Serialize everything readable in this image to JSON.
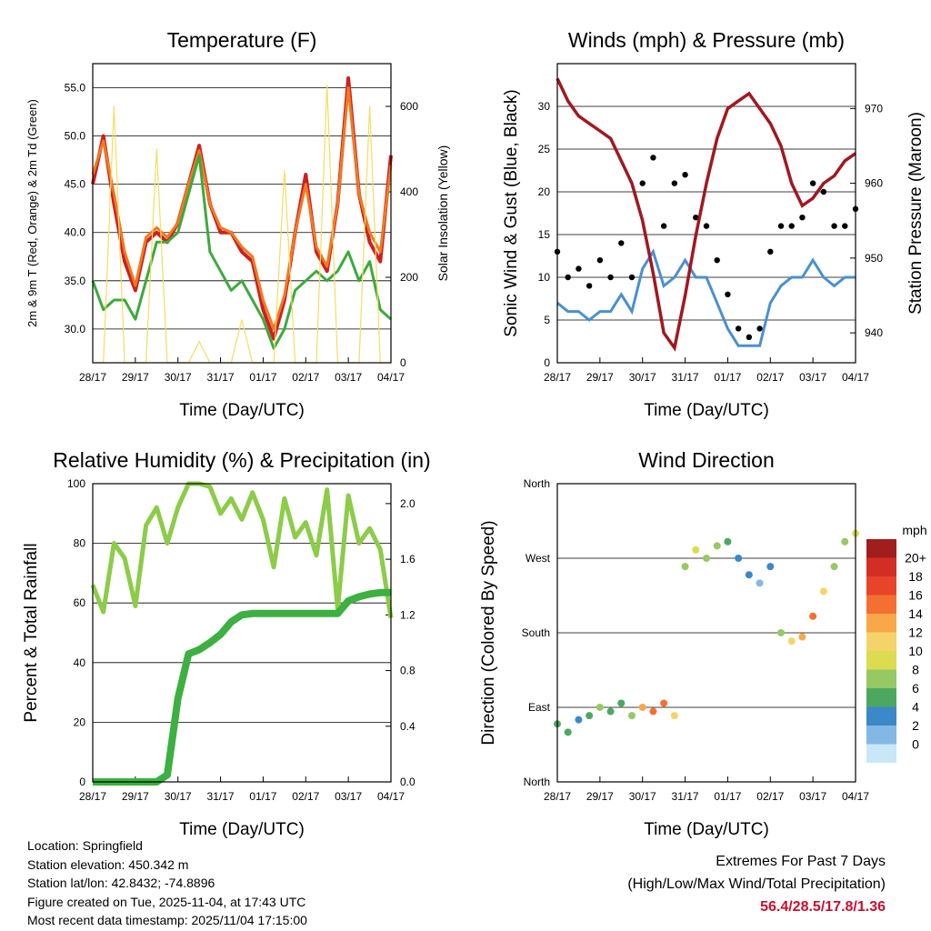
{
  "time_ticks": [
    "28/17",
    "29/17",
    "30/17",
    "31/17",
    "01/17",
    "02/17",
    "03/17",
    "04/17"
  ],
  "extremes": {
    "title": "Extremes For Past 7 Days",
    "subtitle": "(High/Low/Max Wind/Total Precipitation)",
    "values": "56.4/28.5/17.8/1.36"
  },
  "info": {
    "location": "Location: Springfield",
    "elevation": "Station elevation: 450.342 m",
    "latlon": "Station lat/lon: 42.8432; -74.8896",
    "created": "Figure created on Tue, 2025-11-04, at 17:43 UTC",
    "latest": "Most recent data timestamp: 2025/11/04 17:15:00"
  },
  "colors": {
    "red": "#cc2020",
    "orange": "#f07a20",
    "green": "#3caa3c",
    "yellow": "#f5dd60",
    "black": "#000000",
    "blue": "#4a90d0",
    "maroon": "#a01820",
    "rh": "#8ccc48",
    "precip": "#3cb040"
  },
  "chart_data": [
    {
      "id": "temperature",
      "type": "line",
      "title": "Temperature (F)",
      "xlabel": "Time (Day/UTC)",
      "ylabel": "2m & 9m T (Red, Orange) & 2m Td (Green)",
      "y2label": "Solar Insolation (Yellow)",
      "ylim": [
        26.5,
        57.5
      ],
      "yticks": [
        "30.0",
        "35.0",
        "40.0",
        "45.0",
        "50.0",
        "55.0"
      ],
      "y2lim": [
        0,
        700
      ],
      "y2ticks": [
        "0",
        "200",
        "400",
        "600"
      ],
      "x": [
        0,
        0.25,
        0.5,
        0.75,
        1,
        1.25,
        1.5,
        1.75,
        2,
        2.25,
        2.5,
        2.75,
        3,
        3.25,
        3.5,
        3.75,
        4,
        4.25,
        4.5,
        4.75,
        5,
        5.25,
        5.5,
        5.75,
        6,
        6.25,
        6.5,
        6.75,
        7
      ],
      "series": [
        {
          "name": "2m T",
          "values": [
            45,
            50,
            43,
            37,
            34,
            39,
            40,
            39,
            41,
            45,
            49,
            43,
            40,
            40,
            38,
            37,
            32,
            29,
            33,
            40,
            46,
            38,
            36,
            43,
            56,
            44,
            39,
            37,
            48
          ]
        },
        {
          "name": "9m T",
          "values": [
            46,
            49.5,
            44,
            38,
            34.5,
            39.5,
            40.5,
            39.5,
            41,
            45,
            48.5,
            43,
            40.5,
            40,
            38.5,
            37.5,
            33,
            30,
            33.5,
            40,
            45,
            38.5,
            36.5,
            43,
            55,
            44,
            40,
            38,
            47
          ]
        },
        {
          "name": "2m Td",
          "values": [
            35,
            32,
            33,
            33,
            31,
            35,
            39,
            39,
            40,
            44,
            48,
            38,
            36,
            34,
            35,
            33,
            31,
            28,
            30,
            34,
            35,
            36,
            35,
            36,
            38,
            35,
            37,
            32,
            31
          ]
        },
        {
          "name": "Solar insolation",
          "axis": "y2",
          "values": [
            0,
            0,
            600,
            0,
            0,
            0,
            500,
            0,
            0,
            0,
            50,
            0,
            0,
            0,
            100,
            0,
            0,
            0,
            450,
            0,
            0,
            0,
            650,
            0,
            0,
            0,
            600,
            0,
            0
          ]
        }
      ]
    },
    {
      "id": "winds",
      "type": "line",
      "title": "Winds (mph) & Pressure (mb)",
      "xlabel": "Time (Day/UTC)",
      "ylabel": "Sonic Wind & Gust (Blue, Black)",
      "y2label": "Station Pressure (Maroon)",
      "ylim": [
        0,
        35
      ],
      "yticks": [
        "0",
        "5",
        "10",
        "15",
        "20",
        "25",
        "30"
      ],
      "y2lim": [
        936,
        976
      ],
      "y2ticks": [
        "940",
        "950",
        "960",
        "970"
      ],
      "x": [
        0,
        0.25,
        0.5,
        0.75,
        1,
        1.25,
        1.5,
        1.75,
        2,
        2.25,
        2.5,
        2.75,
        3,
        3.25,
        3.5,
        3.75,
        4,
        4.25,
        4.5,
        4.75,
        5,
        5.25,
        5.5,
        5.75,
        6,
        6.25,
        6.5,
        6.75,
        7
      ],
      "series": [
        {
          "name": "Gust",
          "values": [
            13,
            10,
            11,
            9,
            12,
            10,
            14,
            10,
            21,
            24,
            16,
            21,
            22,
            17,
            16,
            12,
            8,
            4,
            3,
            4,
            13,
            16,
            16,
            17,
            21,
            20,
            16,
            16,
            18
          ]
        },
        {
          "name": "Wind",
          "values": [
            7,
            6,
            6,
            5,
            6,
            6,
            8,
            6,
            11,
            13,
            9,
            10,
            12,
            10,
            10,
            7,
            4,
            2,
            2,
            2,
            7,
            9,
            10,
            10,
            12,
            10,
            9,
            10,
            10
          ]
        },
        {
          "name": "Pressure",
          "axis": "y2",
          "values": [
            974,
            971,
            969,
            968,
            967,
            966,
            963,
            960,
            955,
            948,
            940,
            938,
            945,
            953,
            960,
            966,
            970,
            971,
            972,
            970,
            968,
            965,
            960,
            957,
            958,
            960,
            961,
            963,
            964
          ]
        }
      ]
    },
    {
      "id": "rh_precip",
      "type": "line",
      "title": "Relative Humidity (%) & Precipitation (in)",
      "xlabel": "Time (Day/UTC)",
      "ylabel": "Percent & Total Rainfall",
      "ylim": [
        0,
        100
      ],
      "yticks": [
        "0",
        "20",
        "40",
        "60",
        "80",
        "100"
      ],
      "y2lim": [
        0,
        2.143
      ],
      "y2ticks": [
        "0.0",
        "0.4",
        "0.8",
        "1.2",
        "1.6",
        "2.0"
      ],
      "x": [
        0,
        0.25,
        0.5,
        0.75,
        1,
        1.25,
        1.5,
        1.75,
        2,
        2.25,
        2.5,
        2.75,
        3,
        3.25,
        3.5,
        3.75,
        4,
        4.25,
        4.5,
        4.75,
        5,
        5.25,
        5.5,
        5.75,
        6,
        6.25,
        6.5,
        6.75,
        7
      ],
      "series": [
        {
          "name": "Relative humidity",
          "values": [
            66,
            57,
            80,
            75,
            59,
            86,
            92,
            80,
            92,
            100,
            100,
            99,
            90,
            95,
            88,
            97,
            88,
            72,
            95,
            82,
            87,
            76,
            98,
            58,
            96,
            80,
            85,
            78,
            55
          ]
        },
        {
          "name": "Total precipitation",
          "axis": "y2",
          "values": [
            0,
            0,
            0,
            0,
            0,
            0,
            0,
            0.05,
            0.6,
            0.92,
            0.95,
            1.0,
            1.06,
            1.15,
            1.2,
            1.21,
            1.21,
            1.21,
            1.21,
            1.21,
            1.21,
            1.21,
            1.21,
            1.21,
            1.3,
            1.33,
            1.35,
            1.36,
            1.36
          ]
        }
      ]
    },
    {
      "id": "wind_direction",
      "type": "scatter",
      "title": "Wind Direction",
      "xlabel": "Time (Day/UTC)",
      "ylabel": "Direction (Colored By Speed)",
      "ylim": [
        0,
        360
      ],
      "yticks": [
        "North",
        "East",
        "South",
        "West",
        "North"
      ],
      "x": [
        0,
        0.25,
        0.5,
        0.75,
        1,
        1.25,
        1.5,
        1.75,
        2,
        2.25,
        2.5,
        2.75,
        3,
        3.25,
        3.5,
        3.75,
        4,
        4.25,
        4.5,
        4.75,
        5,
        5.25,
        5.5,
        5.75,
        6,
        6.25,
        6.5,
        6.75,
        7
      ],
      "series": [
        {
          "name": "Direction",
          "values": [
            70,
            60,
            75,
            80,
            90,
            85,
            95,
            80,
            90,
            85,
            95,
            80,
            260,
            280,
            270,
            285,
            290,
            270,
            250,
            240,
            260,
            180,
            170,
            175,
            200,
            230,
            260,
            290,
            300
          ]
        },
        {
          "name": "Speed",
          "values": [
            6,
            5,
            4,
            5,
            7,
            6,
            5,
            8,
            14,
            16,
            15,
            12,
            8,
            10,
            7,
            8,
            6,
            4,
            3,
            2,
            4,
            8,
            12,
            14,
            16,
            12,
            8,
            8,
            10
          ]
        }
      ],
      "legend": {
        "title": "mph",
        "labels": [
          "20+",
          "18",
          "16",
          "14",
          "12",
          "10",
          "8",
          "6",
          "4",
          "2",
          "0"
        ],
        "colors": [
          "#a01e1e",
          "#d22e26",
          "#e8442a",
          "#f47030",
          "#f8a848",
          "#f4d468",
          "#dcdc50",
          "#96c864",
          "#4ca860",
          "#3c88c8",
          "#84b8e4",
          "#c8e8f8"
        ]
      }
    }
  ]
}
